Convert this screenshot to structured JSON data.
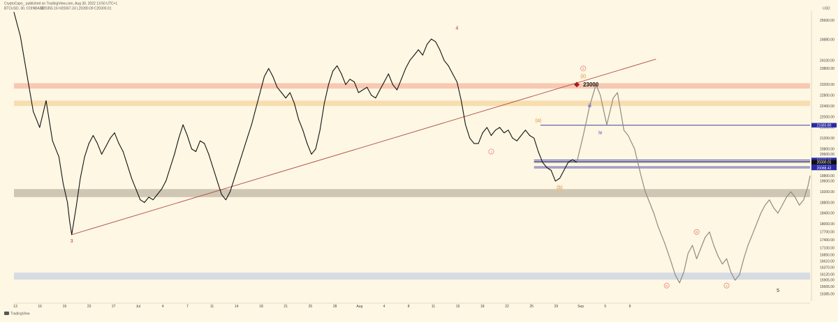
{
  "header": {
    "publisher": "CryptoCapo_ published on TradingView.com, Aug 30, 2022 13:50 UTC+1",
    "symbol": "BTCUSD, 30, COINBASE",
    "ohlc": "O20355.16 H20367.33 L20280.09 C20300.01"
  },
  "branding": {
    "logo_text": "TradingView"
  },
  "chart_data": {
    "type": "line",
    "title": "",
    "xlabel": "",
    "ylabel": "",
    "currency_label": "USD",
    "ylim": [
      15120,
      25940
    ],
    "y_ticks": [
      {
        "value": 25600,
        "label": "25600.00"
      },
      {
        "value": 24880,
        "label": "24880.00"
      },
      {
        "value": 24100,
        "label": "24100.00"
      },
      {
        "value": 23800,
        "label": "23800.00"
      },
      {
        "value": 23200,
        "label": "23200.00"
      },
      {
        "value": 22800,
        "label": "22800.00"
      },
      {
        "value": 22400,
        "label": "22400.00"
      },
      {
        "value": 22000,
        "label": "22000.00"
      },
      {
        "value": 21600,
        "label": "21600.00"
      },
      {
        "value": 21200,
        "label": "21200.00"
      },
      {
        "value": 20800,
        "label": "20800.00"
      },
      {
        "value": 20600,
        "label": "20600.00"
      },
      {
        "value": 19800,
        "label": "19800.00"
      },
      {
        "value": 19600,
        "label": "19600.00"
      },
      {
        "value": 19200,
        "label": "19200.00"
      },
      {
        "value": 18800,
        "label": "18800.00"
      },
      {
        "value": 18400,
        "label": "18400.00"
      },
      {
        "value": 18000,
        "label": "18000.00"
      },
      {
        "value": 17700,
        "label": "17700.00"
      },
      {
        "value": 17400,
        "label": "17400.00"
      },
      {
        "value": 17100,
        "label": "17100.00"
      },
      {
        "value": 16850,
        "label": "16850.00"
      },
      {
        "value": 16610,
        "label": "16610.00"
      },
      {
        "value": 16370,
        "label": "16370.00"
      },
      {
        "value": 16120,
        "label": "16120.00"
      },
      {
        "value": 15905,
        "label": "15905.00"
      },
      {
        "value": 15665,
        "label": "15665.00"
      },
      {
        "value": 15385,
        "label": "15385.00"
      }
    ],
    "x_ticks": [
      "13",
      "16",
      "19",
      "23",
      "27",
      "Jul",
      "4",
      "7",
      "11",
      "14",
      "18",
      "21",
      "25",
      "28",
      "Aug",
      "4",
      "8",
      "11",
      "15",
      "18",
      "22",
      "25",
      "29",
      "Sep",
      "5",
      "8"
    ],
    "price_series": [
      [
        0,
        25900
      ],
      [
        3,
        25000
      ],
      [
        6,
        23600
      ],
      [
        9,
        22200
      ],
      [
        12,
        21600
      ],
      [
        15,
        22600
      ],
      [
        18,
        21100
      ],
      [
        21,
        20500
      ],
      [
        23,
        19500
      ],
      [
        25,
        18800
      ],
      [
        26,
        18100
      ],
      [
        27,
        17600
      ],
      [
        29,
        18600
      ],
      [
        31,
        19700
      ],
      [
        33,
        20500
      ],
      [
        35,
        21000
      ],
      [
        37,
        21300
      ],
      [
        39,
        21000
      ],
      [
        41,
        20600
      ],
      [
        43,
        20900
      ],
      [
        45,
        21200
      ],
      [
        47,
        21400
      ],
      [
        49,
        21000
      ],
      [
        51,
        20700
      ],
      [
        53,
        20200
      ],
      [
        55,
        19700
      ],
      [
        57,
        19300
      ],
      [
        59,
        18900
      ],
      [
        61,
        18800
      ],
      [
        63,
        19000
      ],
      [
        65,
        18900
      ],
      [
        67,
        19100
      ],
      [
        69,
        19300
      ],
      [
        71,
        19600
      ],
      [
        73,
        20100
      ],
      [
        75,
        20600
      ],
      [
        77,
        21200
      ],
      [
        79,
        21700
      ],
      [
        81,
        21300
      ],
      [
        83,
        20800
      ],
      [
        85,
        20700
      ],
      [
        87,
        21100
      ],
      [
        89,
        21000
      ],
      [
        91,
        20600
      ],
      [
        93,
        20100
      ],
      [
        95,
        19600
      ],
      [
        97,
        19100
      ],
      [
        99,
        18900
      ],
      [
        101,
        19200
      ],
      [
        103,
        19700
      ],
      [
        105,
        20200
      ],
      [
        107,
        20700
      ],
      [
        109,
        21200
      ],
      [
        111,
        21700
      ],
      [
        113,
        22300
      ],
      [
        115,
        22900
      ],
      [
        117,
        23500
      ],
      [
        119,
        23800
      ],
      [
        121,
        23500
      ],
      [
        123,
        23100
      ],
      [
        125,
        22900
      ],
      [
        127,
        22700
      ],
      [
        129,
        22900
      ],
      [
        131,
        22500
      ],
      [
        133,
        21900
      ],
      [
        135,
        21500
      ],
      [
        137,
        21000
      ],
      [
        139,
        20600
      ],
      [
        141,
        20800
      ],
      [
        143,
        21500
      ],
      [
        145,
        22500
      ],
      [
        147,
        23200
      ],
      [
        149,
        23700
      ],
      [
        151,
        23900
      ],
      [
        153,
        23600
      ],
      [
        155,
        23200
      ],
      [
        157,
        23400
      ],
      [
        159,
        23300
      ],
      [
        161,
        22900
      ],
      [
        163,
        23000
      ],
      [
        165,
        23100
      ],
      [
        167,
        22800
      ],
      [
        169,
        22700
      ],
      [
        171,
        23000
      ],
      [
        173,
        23300
      ],
      [
        175,
        23600
      ],
      [
        177,
        23200
      ],
      [
        179,
        23000
      ],
      [
        181,
        23400
      ],
      [
        183,
        23800
      ],
      [
        185,
        24100
      ],
      [
        187,
        24300
      ],
      [
        189,
        24500
      ],
      [
        191,
        24300
      ],
      [
        193,
        24700
      ],
      [
        195,
        24900
      ],
      [
        197,
        24800
      ],
      [
        199,
        24500
      ],
      [
        201,
        24100
      ],
      [
        203,
        23900
      ],
      [
        205,
        23600
      ],
      [
        207,
        23300
      ],
      [
        209,
        22600
      ],
      [
        211,
        21700
      ],
      [
        213,
        21200
      ],
      [
        215,
        21000
      ],
      [
        217,
        21000
      ],
      [
        219,
        21400
      ],
      [
        221,
        21600
      ],
      [
        223,
        21300
      ],
      [
        225,
        21500
      ],
      [
        227,
        21600
      ],
      [
        229,
        21400
      ],
      [
        231,
        21500
      ],
      [
        233,
        21200
      ],
      [
        235,
        21100
      ],
      [
        237,
        21300
      ],
      [
        239,
        21500
      ],
      [
        241,
        21300
      ],
      [
        243,
        21200
      ],
      [
        245,
        20700
      ],
      [
        247,
        20300
      ],
      [
        249,
        20100
      ],
      [
        251,
        20000
      ],
      [
        253,
        19600
      ],
      [
        255,
        19700
      ],
      [
        257,
        20000
      ],
      [
        259,
        20300
      ],
      [
        261,
        20400
      ],
      [
        263,
        20300
      ]
    ],
    "projection_series": [
      [
        263,
        20300
      ],
      [
        266,
        21300
      ],
      [
        269,
        22400
      ],
      [
        272,
        23200
      ],
      [
        274,
        22800
      ],
      [
        277,
        21700
      ],
      [
        280,
        22700
      ],
      [
        282,
        22900
      ],
      [
        285,
        21500
      ],
      [
        287,
        21300
      ],
      [
        290,
        20800
      ],
      [
        293,
        19800
      ],
      [
        295,
        19200
      ],
      [
        297,
        18800
      ],
      [
        299,
        18400
      ],
      [
        301,
        17900
      ],
      [
        304,
        17300
      ],
      [
        307,
        16600
      ],
      [
        309,
        16100
      ],
      [
        311,
        15800
      ],
      [
        313,
        16200
      ],
      [
        315,
        16900
      ],
      [
        317,
        17200
      ],
      [
        319,
        16700
      ],
      [
        321,
        17100
      ],
      [
        323,
        17500
      ],
      [
        325,
        17700
      ],
      [
        327,
        17200
      ],
      [
        329,
        16800
      ],
      [
        331,
        16500
      ],
      [
        333,
        16700
      ],
      [
        335,
        16200
      ],
      [
        337,
        15900
      ],
      [
        339,
        16100
      ],
      [
        341,
        16700
      ],
      [
        343,
        17200
      ],
      [
        345,
        17600
      ],
      [
        347,
        18000
      ],
      [
        349,
        18400
      ],
      [
        351,
        18700
      ],
      [
        353,
        18900
      ],
      [
        355,
        18600
      ],
      [
        357,
        18400
      ],
      [
        359,
        18700
      ],
      [
        361,
        19000
      ],
      [
        363,
        19200
      ],
      [
        365,
        19000
      ],
      [
        367,
        18700
      ],
      [
        369,
        18900
      ],
      [
        371,
        19400
      ],
      [
        372,
        19800
      ]
    ],
    "zones": [
      {
        "name": "resistance-red",
        "from": 23050,
        "to": 23250,
        "color": "#f7c8b3"
      },
      {
        "name": "resistance-orange",
        "from": 22400,
        "to": 22600,
        "color": "#f8ddb0"
      },
      {
        "name": "support-grey",
        "from": 19000,
        "to": 19300,
        "color": "#cfc7b3"
      },
      {
        "name": "support-blue",
        "from": 15920,
        "to": 16180,
        "color": "#d7dbe3"
      }
    ],
    "trendline": {
      "from": [
        27,
        17600
      ],
      "to": [
        300,
        24150
      ],
      "color": "#b24a44"
    },
    "horizontal_levels": [
      {
        "from": 246,
        "y": 21683,
        "label": "21683.80",
        "color": "#2a2aa8"
      },
      {
        "from": 243,
        "y": 20387,
        "label": "20387.08",
        "color": "#2a2aa8"
      },
      {
        "from": 243,
        "y": 20340,
        "label": "20340.69",
        "color": "#2a2aa8"
      },
      {
        "from": 243,
        "y": 20300,
        "label": "20300.01",
        "color": "#111111"
      },
      {
        "from": 243,
        "y": 20137,
        "label": "20137.21",
        "color": "#2a2aa8"
      },
      {
        "from": 243,
        "y": 20088,
        "label": "20088.42",
        "color": "#2a2aa8"
      }
    ],
    "target": {
      "x": 263,
      "y": 23200,
      "label": "23000"
    },
    "wave_labels": [
      {
        "text": "3",
        "x": 27,
        "y": 17350,
        "color": "#c0392b",
        "circled": false
      },
      {
        "text": "4",
        "x": 207,
        "y": 25300,
        "color": "#c0392b",
        "circled": false
      },
      {
        "text": "i",
        "x": 223,
        "y": 20700,
        "color": "#e0685a",
        "circled": true
      },
      {
        "text": "ii",
        "x": 266,
        "y": 23800,
        "color": "#e0685a",
        "circled": true
      },
      {
        "text": "(ii)",
        "x": 266,
        "y": 23500,
        "color": "#e08e2a",
        "circled": false
      },
      {
        "text": "(a)",
        "x": 245,
        "y": 21850,
        "color": "#e08e2a",
        "circled": false
      },
      {
        "text": "(b)",
        "x": 255,
        "y": 19350,
        "color": "#e08e2a",
        "circled": false
      },
      {
        "text": "iii",
        "x": 269,
        "y": 22400,
        "color": "#3a3acc",
        "circled": false
      },
      {
        "text": "iv",
        "x": 274,
        "y": 21400,
        "color": "#3a3acc",
        "circled": false
      },
      {
        "text": "iii",
        "x": 319,
        "y": 17700,
        "color": "#e0685a",
        "circled": true
      },
      {
        "text": "iv",
        "x": 305,
        "y": 15700,
        "color": "#e0685a",
        "circled": true
      },
      {
        "text": "v",
        "x": 333,
        "y": 15700,
        "color": "#e0685a",
        "circled": true
      },
      {
        "text": "5",
        "x": 357,
        "y": 15500,
        "color": "#333333",
        "circled": false
      }
    ]
  }
}
